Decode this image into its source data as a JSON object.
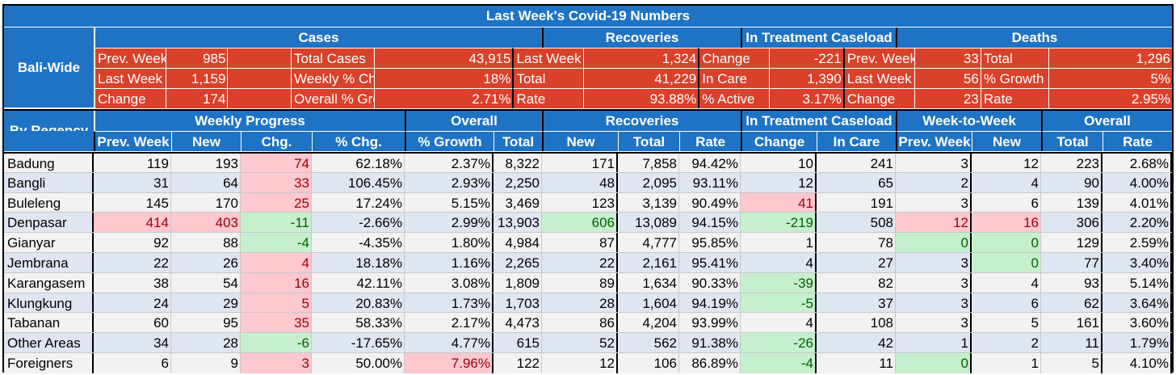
{
  "title": "Last Week's Covid-19 Numbers",
  "summary": {
    "label": "Bali-Wide",
    "sections": [
      "Cases",
      "Recoveries",
      "In Treatment Caseload",
      "Deaths"
    ],
    "rows": [
      [
        "Prev. Week",
        "985",
        "",
        "Total Cases",
        "43,915",
        "Last Week",
        "1,324",
        "Change",
        "-221",
        "Prev. Week",
        "33",
        "Total",
        "1,296"
      ],
      [
        "Last Week",
        "1,159",
        "",
        "Weekly % Change",
        "18%",
        "Total",
        "41,229",
        "In Care",
        "1,390",
        "Last Week",
        "56",
        "% Growth",
        "5%"
      ],
      [
        "Change",
        "174",
        "",
        "Overall % Growth",
        "2.71%",
        "Rate",
        "93.88%",
        "% Active",
        "3.17%",
        "Change",
        "23",
        "Rate",
        "2.95%"
      ]
    ]
  },
  "detail": {
    "label": "By Regency",
    "groups": [
      "Weekly Progress",
      "Overall",
      "Recoveries",
      "In Treatment Caseload",
      "Week-to-Week",
      "Overall"
    ],
    "columns": [
      "Prev. Week",
      "New",
      "Chg.",
      "% Chg.",
      "% Growth",
      "Total",
      "New",
      "Total",
      "Rate",
      "Change",
      "In Care",
      "Prev. Week",
      "New",
      "Total",
      "Rate"
    ],
    "rows": [
      {
        "name": "Badung",
        "v": [
          "119",
          "193",
          "74",
          "62.18%",
          "2.37%",
          "8,322",
          "171",
          "7,858",
          "94.42%",
          "10",
          "241",
          "3",
          "12",
          "223",
          "2.68%"
        ],
        "s": {
          "2": "pos"
        }
      },
      {
        "name": "Bangli",
        "v": [
          "31",
          "64",
          "33",
          "106.45%",
          "2.93%",
          "2,250",
          "48",
          "2,095",
          "93.11%",
          "12",
          "65",
          "2",
          "4",
          "90",
          "4.00%"
        ],
        "s": {
          "2": "pos"
        }
      },
      {
        "name": "Buleleng",
        "v": [
          "145",
          "170",
          "25",
          "17.24%",
          "5.15%",
          "3,469",
          "123",
          "3,139",
          "90.49%",
          "41",
          "191",
          "3",
          "6",
          "139",
          "4.01%"
        ],
        "s": {
          "2": "pos",
          "9": "pos"
        }
      },
      {
        "name": "Denpasar",
        "v": [
          "414",
          "403",
          "-11",
          "-2.66%",
          "2.99%",
          "13,903",
          "606",
          "13,089",
          "94.15%",
          "-219",
          "508",
          "12",
          "16",
          "306",
          "2.20%"
        ],
        "s": {
          "0": "pos",
          "1": "pos",
          "2": "neg",
          "6": "neg",
          "9": "neg",
          "11": "pos",
          "12": "pos"
        }
      },
      {
        "name": "Gianyar",
        "v": [
          "92",
          "88",
          "-4",
          "-4.35%",
          "1.80%",
          "4,984",
          "87",
          "4,777",
          "95.85%",
          "1",
          "78",
          "0",
          "0",
          "129",
          "2.59%"
        ],
        "s": {
          "2": "neg",
          "11": "neg",
          "12": "neg"
        }
      },
      {
        "name": "Jembrana",
        "v": [
          "22",
          "26",
          "4",
          "18.18%",
          "1.16%",
          "2,265",
          "22",
          "2,161",
          "95.41%",
          "4",
          "27",
          "3",
          "0",
          "77",
          "3.40%"
        ],
        "s": {
          "2": "pos",
          "12": "neg"
        }
      },
      {
        "name": "Karangasem",
        "v": [
          "38",
          "54",
          "16",
          "42.11%",
          "3.08%",
          "1,809",
          "89",
          "1,634",
          "90.33%",
          "-39",
          "82",
          "3",
          "4",
          "93",
          "5.14%"
        ],
        "s": {
          "2": "pos",
          "9": "neg"
        }
      },
      {
        "name": "Klungkung",
        "v": [
          "24",
          "29",
          "5",
          "20.83%",
          "1.73%",
          "1,703",
          "28",
          "1,604",
          "94.19%",
          "-5",
          "37",
          "3",
          "6",
          "62",
          "3.64%"
        ],
        "s": {
          "2": "pos",
          "9": "neg"
        }
      },
      {
        "name": "Tabanan",
        "v": [
          "60",
          "95",
          "35",
          "58.33%",
          "2.17%",
          "4,473",
          "86",
          "4,204",
          "93.99%",
          "4",
          "108",
          "3",
          "5",
          "161",
          "3.60%"
        ],
        "s": {
          "2": "pos"
        }
      },
      {
        "name": "Other Areas",
        "v": [
          "34",
          "28",
          "-6",
          "-17.65%",
          "4.77%",
          "615",
          "52",
          "562",
          "91.38%",
          "-26",
          "42",
          "1",
          "2",
          "11",
          "1.79%"
        ],
        "s": {
          "2": "neg",
          "9": "neg"
        }
      },
      {
        "name": "Foreigners",
        "v": [
          "6",
          "9",
          "3",
          "50.00%",
          "7.96%",
          "122",
          "12",
          "106",
          "86.89%",
          "-4",
          "11",
          "0",
          "1",
          "5",
          "4.10%"
        ],
        "s": {
          "2": "pos",
          "4": "pos",
          "9": "neg",
          "11": "neg"
        }
      }
    ]
  }
}
